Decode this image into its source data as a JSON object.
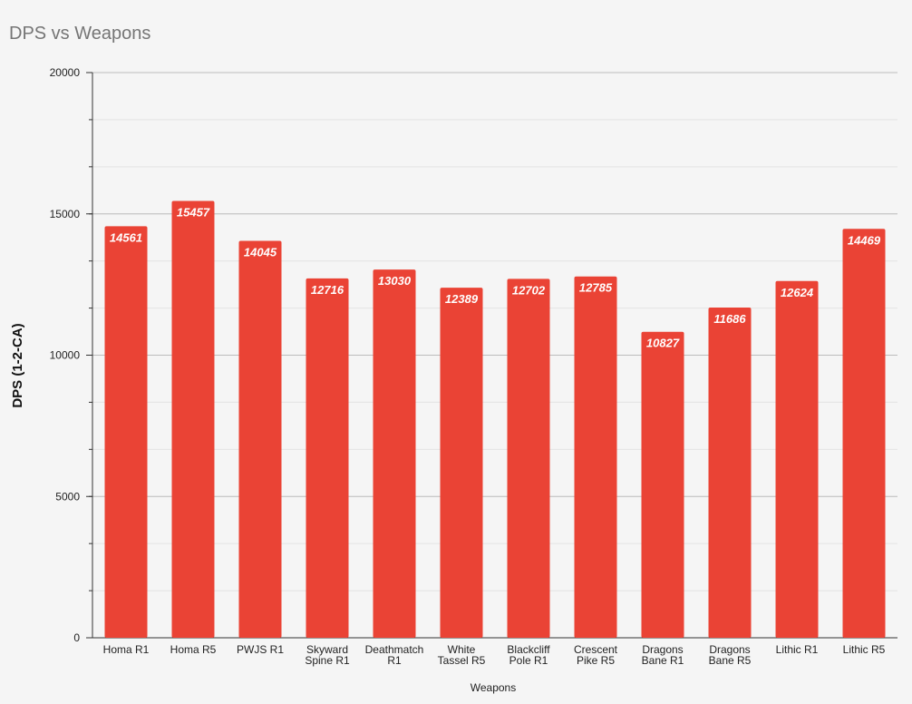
{
  "chart_data": {
    "type": "bar",
    "title": "DPS vs Weapons",
    "xlabel": "Weapons",
    "ylabel": "DPS (1-2-CA)",
    "categories": [
      [
        "Homa R1"
      ],
      [
        "Homa R5"
      ],
      [
        "PWJS R1"
      ],
      [
        "Skyward",
        "Spine R1"
      ],
      [
        "Deathmatch",
        "R1"
      ],
      [
        "White",
        "Tassel R5"
      ],
      [
        "Blackcliff",
        "Pole R1"
      ],
      [
        "Crescent",
        "Pike R5"
      ],
      [
        "Dragons",
        "Bane R1"
      ],
      [
        "Dragons",
        "Bane R5"
      ],
      [
        "Lithic R1"
      ],
      [
        "Lithic R5"
      ]
    ],
    "values": [
      14561,
      15457,
      14045,
      12716,
      13030,
      12389,
      12702,
      12785,
      10827,
      11686,
      12624,
      14469
    ],
    "ylim": [
      0,
      20000
    ],
    "yticks": [
      0,
      5000,
      10000,
      15000,
      20000
    ],
    "ytick_labels": [
      "0",
      "5000",
      "10000",
      "15000",
      "20000"
    ],
    "minor_grid_step": 1666.67,
    "grid": true,
    "legend": "none",
    "bar_color": "#ea4335"
  }
}
